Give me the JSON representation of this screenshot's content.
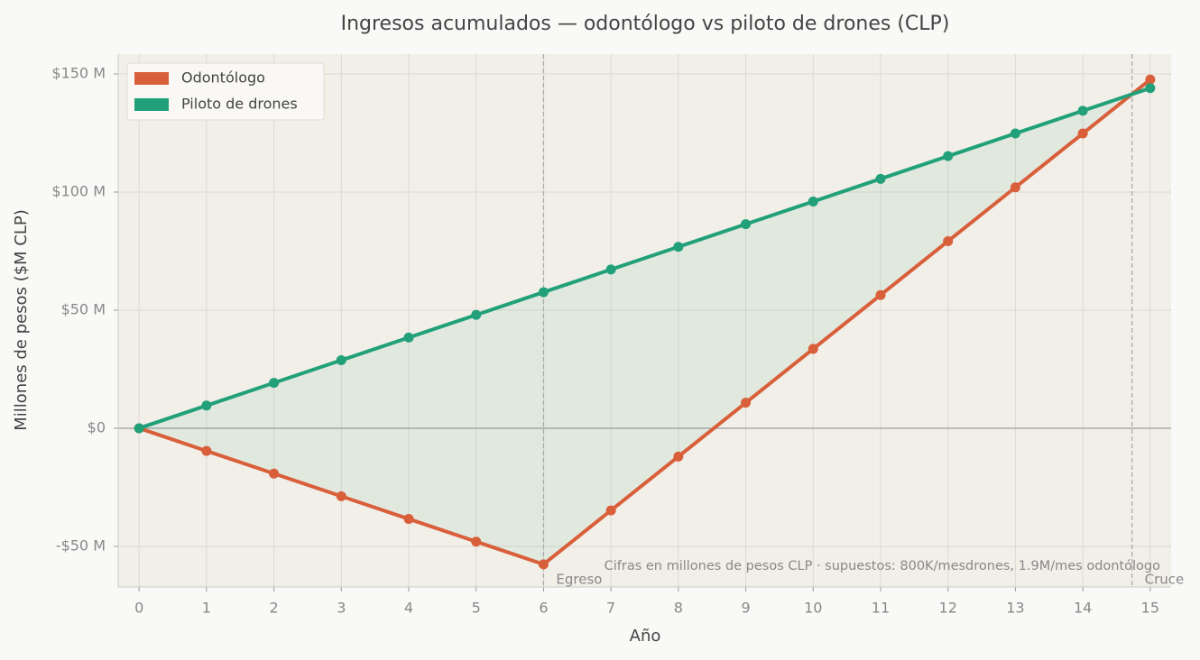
{
  "chart_data": {
    "type": "line",
    "title": "Ingresos acumulados — odontólogo vs piloto de drones (CLP)",
    "x_label": "Año",
    "y_label": "Millones de pesos ($M CLP)",
    "x": [
      0,
      1,
      2,
      3,
      4,
      5,
      6,
      7,
      8,
      9,
      10,
      11,
      12,
      13,
      14,
      15
    ],
    "series": [
      {
        "name": "Odontólogo",
        "color": "#d95f3b",
        "values": [
          0,
          -9.6,
          -19.2,
          -28.8,
          -38.4,
          -48,
          -57.6,
          -34.8,
          -12,
          10.8,
          33.6,
          56.4,
          79.2,
          102,
          124.8,
          147.6
        ]
      },
      {
        "name": "Piloto de drones",
        "color": "#21a07a",
        "values": [
          0,
          9.6,
          19.2,
          28.8,
          38.4,
          48,
          57.6,
          67.2,
          76.8,
          86.4,
          96,
          105.6,
          115.2,
          124.8,
          134.4,
          144
        ]
      }
    ],
    "fill_between": true,
    "xlim": [
      -0.31,
      15.31
    ],
    "ylim": [
      -67.2,
      158.4
    ],
    "xticks": [
      0,
      1,
      2,
      3,
      4,
      5,
      6,
      7,
      8,
      9,
      10,
      11,
      12,
      13,
      14,
      15
    ],
    "yticks": [
      {
        "value": -50,
        "label": "-$50 M"
      },
      {
        "value": 0,
        "label": "$0"
      },
      {
        "value": 50,
        "label": "$50 M"
      },
      {
        "value": 100,
        "label": "$100 M"
      },
      {
        "value": 150,
        "label": "$150 M"
      }
    ],
    "grid": true,
    "legend": "upper left",
    "vlines": [
      {
        "x": 6,
        "label": "Egreso"
      },
      {
        "x": 14.73,
        "label": "Cruce"
      }
    ],
    "annotation": "Cifras en millones de pesos CLP · supuestos: 800K/mesdrones, 1.9M/mes odontólogo"
  }
}
